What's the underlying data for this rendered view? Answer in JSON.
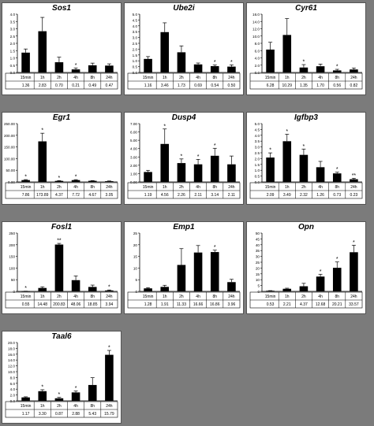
{
  "page": {
    "background": "#7b7b7b",
    "bar_color": "#000000"
  },
  "chart_data": [
    {
      "type": "bar",
      "title": "Sos1",
      "categories": [
        "15min",
        "1h",
        "2h",
        "4h",
        "8h",
        "24h"
      ],
      "values": [
        1.36,
        2.83,
        0.7,
        0.21,
        0.49,
        0.47
      ],
      "errors": [
        0.25,
        0.95,
        0.35,
        0.1,
        0.15,
        0.12
      ],
      "table": [
        "1.36",
        "2.83",
        "0.70",
        "0.21",
        "0.49",
        "0.47"
      ],
      "ylim": [
        0,
        4.0
      ],
      "yticks": [
        "0.0",
        "0.5",
        "1.0",
        "1.5",
        "2.0",
        "2.5",
        "3.0",
        "3.5",
        "4.0"
      ],
      "marks": [
        "",
        "",
        "",
        "*",
        "",
        ""
      ]
    },
    {
      "type": "bar",
      "title": "Ube2i",
      "categories": [
        "15min",
        "1h",
        "2h",
        "4h",
        "8h",
        "24h"
      ],
      "values": [
        1.16,
        3.46,
        1.73,
        0.69,
        0.54,
        0.5
      ],
      "errors": [
        0.2,
        0.8,
        0.55,
        0.12,
        0.1,
        0.15
      ],
      "table": [
        "1.16",
        "3.46",
        "1.73",
        "0.69",
        "0.54",
        "0.50"
      ],
      "ylim": [
        0,
        5.0
      ],
      "yticks": [
        "0.0",
        "0.5",
        "1.0",
        "1.5",
        "2.0",
        "2.5",
        "3.0",
        "3.5",
        "4.0",
        "4.5",
        "5.0"
      ],
      "marks": [
        "",
        "",
        "",
        "",
        "*",
        "*"
      ]
    },
    {
      "type": "bar",
      "title": "Cyr61",
      "categories": [
        "15min",
        "1h",
        "2h",
        "4h",
        "8h",
        "24h"
      ],
      "values": [
        6.28,
        10.29,
        1.35,
        1.7,
        0.56,
        0.82
      ],
      "errors": [
        2.0,
        4.5,
        0.8,
        0.6,
        0.3,
        0.4
      ],
      "table": [
        "6.28",
        "10.29",
        "1.35",
        "1.70",
        "0.56",
        "0.82"
      ],
      "ylim": [
        0,
        16.0
      ],
      "yticks": [
        "0.0",
        "2.0",
        "4.0",
        "6.0",
        "8.0",
        "10.0",
        "12.0",
        "14.0",
        "16.0"
      ],
      "marks": [
        "",
        "",
        "*",
        "",
        "*",
        ""
      ]
    },
    {
      "type": "bar",
      "title": "Egr1",
      "categories": [
        "15min",
        "1h",
        "2h",
        "4h",
        "8h",
        "24h"
      ],
      "values": [
        7.86,
        173.89,
        4.37,
        7.72,
        4.67,
        3.05
      ],
      "errors": [
        2.0,
        35.0,
        1.5,
        2.0,
        1.0,
        1.0
      ],
      "table": [
        "7.86",
        "173.89",
        "4.37",
        "7.72",
        "4.67",
        "3.05"
      ],
      "ylim": [
        0,
        250
      ],
      "yticks": [
        "0.00",
        "50.00",
        "100.00",
        "150.00",
        "200.00",
        "250.00"
      ],
      "marks": [
        "*",
        "*",
        "*",
        "*",
        "",
        ""
      ]
    },
    {
      "type": "bar",
      "title": "Dusp4",
      "categories": [
        "15min",
        "1h",
        "2h",
        "4h",
        "8h",
        "24h"
      ],
      "values": [
        1.19,
        4.56,
        2.26,
        2.11,
        3.14,
        2.11
      ],
      "errors": [
        0.2,
        1.8,
        0.5,
        0.6,
        0.9,
        1.0
      ],
      "table": [
        "1.19",
        "4.56",
        "2.26",
        "2.11",
        "3.14",
        "2.11"
      ],
      "ylim": [
        0,
        7.0
      ],
      "yticks": [
        "0.00",
        "1.00",
        "2.00",
        "3.00",
        "4.00",
        "5.00",
        "6.00",
        "7.00"
      ],
      "marks": [
        "",
        "*",
        "*",
        "*",
        "*",
        ""
      ]
    },
    {
      "type": "bar",
      "title": "Igfbp3",
      "categories": [
        "15min",
        "1h",
        "2h",
        "4h",
        "8h",
        "24h"
      ],
      "values": [
        2.09,
        3.49,
        2.32,
        1.26,
        0.73,
        0.23
      ],
      "errors": [
        0.4,
        0.6,
        0.5,
        0.5,
        0.1,
        0.08
      ],
      "table": [
        "2.09",
        "3.49",
        "2.32",
        "1.26",
        "0.73",
        "0.23"
      ],
      "ylim": [
        0,
        5.0
      ],
      "yticks": [
        "0.0",
        "0.5",
        "1.0",
        "1.5",
        "2.0",
        "2.5",
        "3.0",
        "3.5",
        "4.0",
        "4.5",
        "5.0"
      ],
      "marks": [
        "*",
        "*",
        "*",
        "",
        "*",
        "**"
      ]
    },
    {
      "type": "bar",
      "title": "Fosl1",
      "categories": [
        "15min",
        "1h",
        "2h",
        "4h",
        "8h",
        "24h"
      ],
      "values": [
        0.55,
        14.48,
        200.83,
        48.06,
        18.85,
        3.94
      ],
      "errors": [
        0.3,
        5.0,
        5.0,
        18.0,
        8.0,
        2.0
      ],
      "table": [
        "0.55",
        "14.48",
        "200.83",
        "48.06",
        "18.85",
        "3.94"
      ],
      "ylim": [
        0,
        250
      ],
      "yticks": [
        "0",
        "50",
        "100",
        "150",
        "200",
        "250"
      ],
      "marks": [
        "*",
        "",
        "**",
        "",
        "",
        "*"
      ]
    },
    {
      "type": "bar",
      "title": "Emp1",
      "categories": [
        "15min",
        "1h",
        "2h",
        "4h",
        "8h",
        "24h"
      ],
      "values": [
        1.28,
        1.91,
        11.33,
        16.66,
        16.86,
        3.96
      ],
      "errors": [
        0.3,
        0.7,
        7.0,
        3.0,
        0.8,
        1.2
      ],
      "table": [
        "1.28",
        "1.91",
        "11.33",
        "16.66",
        "16.86",
        "3.96"
      ],
      "ylim": [
        0,
        25
      ],
      "yticks": [
        "0",
        "5",
        "10",
        "15",
        "20",
        "25"
      ],
      "marks": [
        "",
        "",
        "",
        "",
        "*",
        ""
      ]
    },
    {
      "type": "bar",
      "title": "Opn",
      "categories": [
        "15min",
        "1h",
        "2h",
        "4h",
        "8h",
        "24h"
      ],
      "values": [
        0.53,
        2.21,
        4.37,
        12.68,
        20.21,
        33.57
      ],
      "errors": [
        0.1,
        0.5,
        2.5,
        2.0,
        5.0,
        6.0
      ],
      "table": [
        "0.53",
        "2.21",
        "4.37",
        "12.68",
        "20.21",
        "33.57"
      ],
      "ylim": [
        0,
        50
      ],
      "yticks": [
        "0",
        "5",
        "10",
        "15",
        "20",
        "25",
        "30",
        "35",
        "40",
        "45",
        "50"
      ],
      "marks": [
        "",
        "",
        "",
        "*",
        "*",
        "*"
      ]
    },
    {
      "type": "bar",
      "title": "Taal6",
      "categories": [
        "15min",
        "1h",
        "2h",
        "4h",
        "8h",
        "24h"
      ],
      "values": [
        1.17,
        3.3,
        0.87,
        2.88,
        5.43,
        15.79
      ],
      "errors": [
        0.2,
        0.5,
        0.3,
        0.5,
        2.5,
        1.5
      ],
      "table": [
        "1.17",
        "3.30",
        "0.87",
        "2.88",
        "5.43",
        "15.79"
      ],
      "ylim": [
        0,
        20.0
      ],
      "yticks": [
        "0.0",
        "2.0",
        "4.0",
        "6.0",
        "8.0",
        "10.0",
        "12.0",
        "14.0",
        "16.0",
        "18.0",
        "20.0"
      ],
      "marks": [
        "",
        "*",
        "*",
        "*",
        "",
        "*"
      ]
    }
  ]
}
